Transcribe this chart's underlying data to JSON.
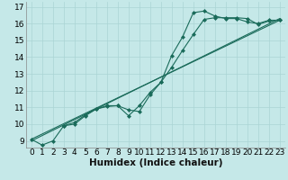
{
  "xlabel": "Humidex (Indice chaleur)",
  "xlim": [
    -0.5,
    23.5
  ],
  "ylim": [
    8.6,
    17.3
  ],
  "xticks": [
    0,
    1,
    2,
    3,
    4,
    5,
    6,
    7,
    8,
    9,
    10,
    11,
    12,
    13,
    14,
    15,
    16,
    17,
    18,
    19,
    20,
    21,
    22,
    23
  ],
  "yticks": [
    9,
    10,
    11,
    12,
    13,
    14,
    15,
    16,
    17
  ],
  "background_color": "#c5e8e8",
  "grid_color": "#aad4d4",
  "line_color": "#1a6b5a",
  "line1_x": [
    0,
    1,
    2,
    3,
    4,
    5,
    6,
    7,
    8,
    9,
    10,
    11,
    12,
    13,
    14,
    15,
    16,
    17,
    18,
    19,
    20,
    21,
    22,
    23
  ],
  "line1_y": [
    9.1,
    8.75,
    9.0,
    9.9,
    10.0,
    10.5,
    10.9,
    11.1,
    11.1,
    10.5,
    11.1,
    11.9,
    12.5,
    14.1,
    15.2,
    16.65,
    16.75,
    16.45,
    16.3,
    16.3,
    16.1,
    16.0,
    16.2,
    16.2
  ],
  "line2_x": [
    3,
    4,
    5,
    6,
    7,
    8,
    9,
    10,
    11,
    12,
    13,
    14,
    15,
    16,
    17,
    18,
    19,
    20,
    21,
    22,
    23
  ],
  "line2_y": [
    9.9,
    10.1,
    10.55,
    10.9,
    11.05,
    11.1,
    10.85,
    10.75,
    11.75,
    12.5,
    13.4,
    14.4,
    15.35,
    16.25,
    16.35,
    16.35,
    16.35,
    16.3,
    15.95,
    16.15,
    16.2
  ],
  "trend1_x": [
    0,
    23
  ],
  "trend1_y": [
    9.0,
    16.3
  ],
  "trend2_x": [
    0,
    23
  ],
  "trend2_y": [
    9.1,
    16.2
  ],
  "font_size": 6.5
}
